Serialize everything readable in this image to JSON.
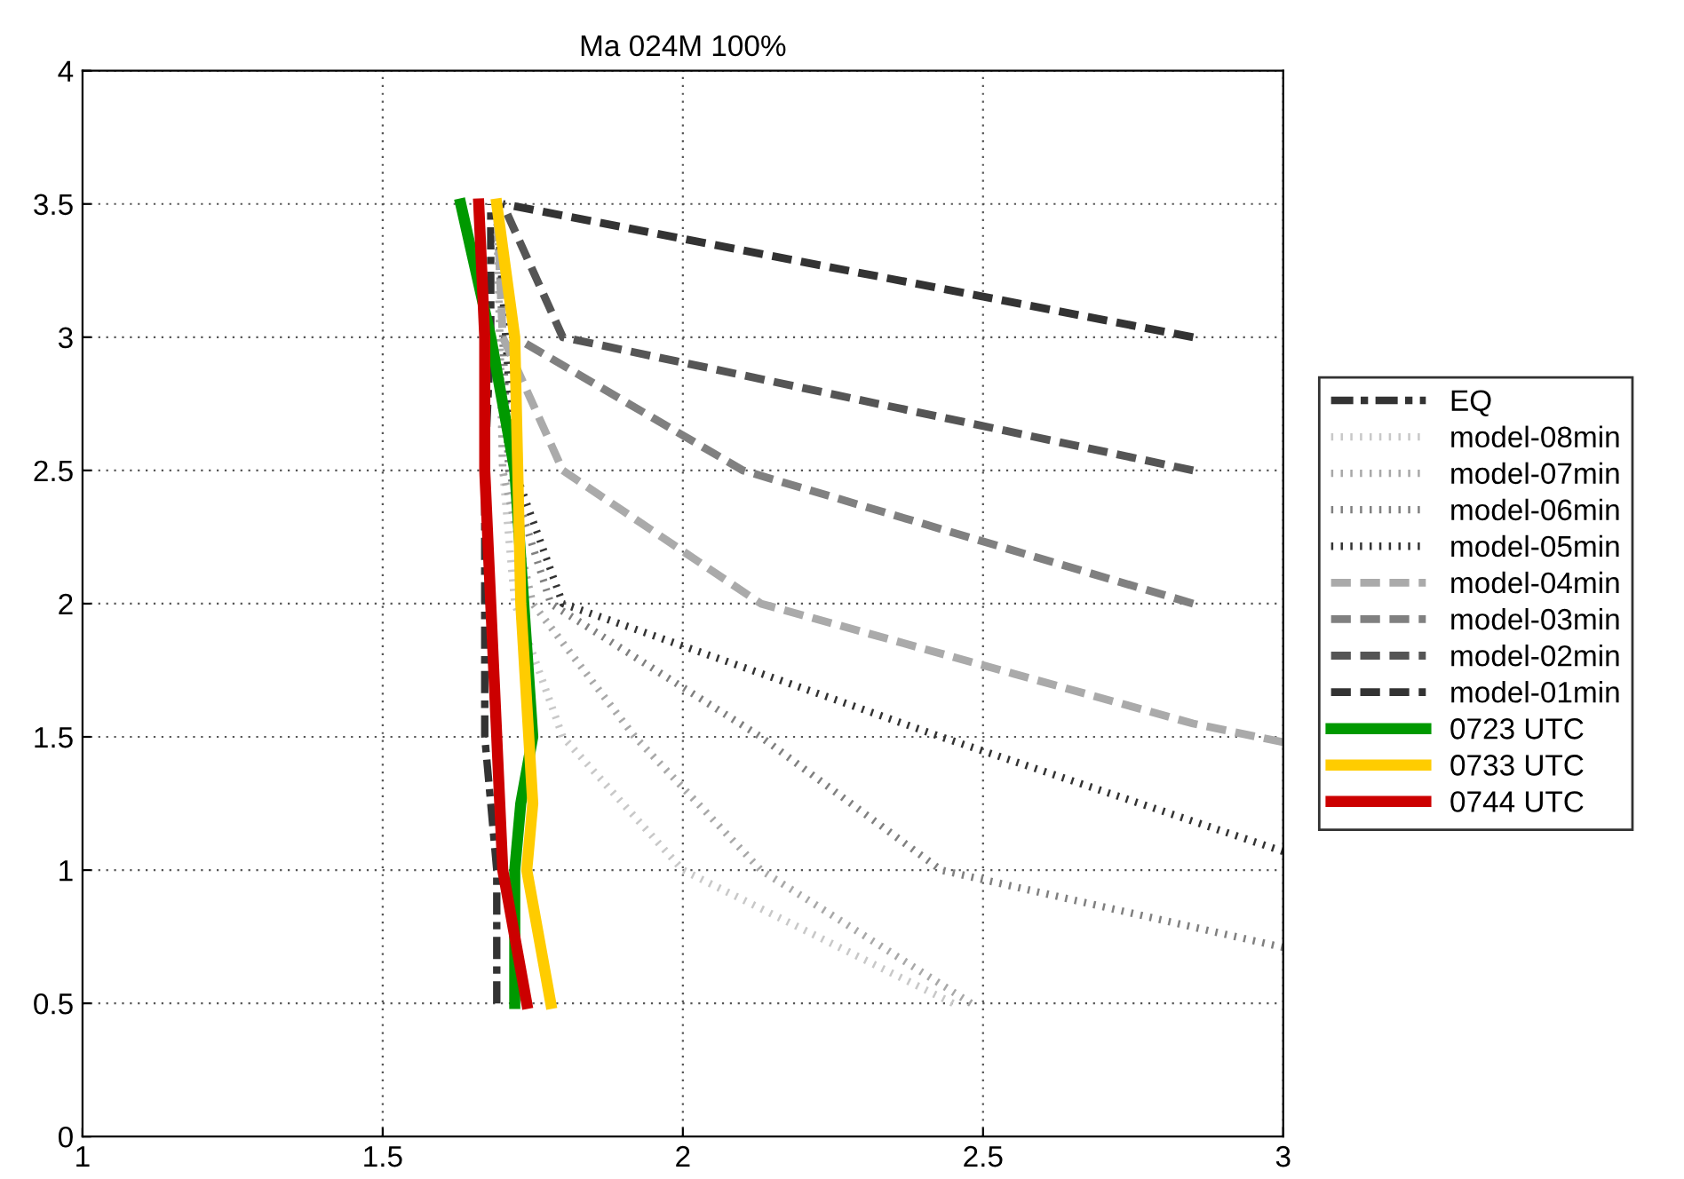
{
  "chart_data": {
    "type": "line",
    "title": "Ma 024M 100%",
    "xlim": [
      1,
      3
    ],
    "ylim": [
      0,
      4
    ],
    "xticks": [
      1,
      1.5,
      2,
      2.5,
      3
    ],
    "yticks": [
      0,
      0.5,
      1,
      1.5,
      2,
      2.5,
      3,
      3.5,
      4
    ],
    "grid": true,
    "legend": "right",
    "marker": "none",
    "series": [
      {
        "name": "EQ",
        "color": "#333333",
        "line_style": "dashdot",
        "x": [
          1.69,
          1.69,
          1.67,
          1.67,
          1.68,
          1.68
        ],
        "values": [
          0.5,
          1.0,
          1.5,
          2.5,
          3.0,
          3.5
        ]
      },
      {
        "name": "model-08min",
        "color": "#c8c8c8",
        "line_style": "dotted",
        "x": [
          2.45,
          2.0,
          1.8,
          1.72,
          1.7,
          1.69
        ],
        "values": [
          0.5,
          1.0,
          1.5,
          2.0,
          2.5,
          3.5
        ]
      },
      {
        "name": "model-07min",
        "color": "#a8a8a8",
        "line_style": "dotted",
        "x": [
          2.48,
          2.13,
          1.92,
          1.75,
          1.7,
          1.69
        ],
        "values": [
          0.5,
          1.0,
          1.5,
          2.0,
          2.5,
          3.5
        ]
      },
      {
        "name": "model-06min",
        "color": "#808080",
        "line_style": "dotted",
        "x": [
          3.0,
          2.43,
          2.13,
          1.78,
          1.71,
          1.69
        ],
        "values": [
          0.71,
          1.0,
          1.5,
          2.0,
          2.5,
          3.5
        ]
      },
      {
        "name": "model-05min",
        "color": "#333333",
        "line_style": "dotted",
        "x": [
          3.0,
          2.43,
          1.8,
          1.72,
          1.69
        ],
        "values": [
          1.07,
          1.5,
          2.0,
          2.5,
          3.5
        ]
      },
      {
        "name": "model-04min",
        "color": "#aaaaaa",
        "line_style": "dashed",
        "x": [
          3.0,
          2.85,
          2.13,
          1.8,
          1.7,
          1.69
        ],
        "values": [
          1.48,
          1.55,
          2.0,
          2.5,
          3.0,
          3.5
        ]
      },
      {
        "name": "model-03min",
        "color": "#808080",
        "line_style": "dashed",
        "x": [
          2.85,
          2.1,
          1.72,
          1.69
        ],
        "values": [
          2.0,
          2.5,
          3.0,
          3.5
        ]
      },
      {
        "name": "model-02min",
        "color": "#555555",
        "line_style": "dashed",
        "x": [
          2.85,
          1.8,
          1.7
        ],
        "values": [
          2.5,
          3.0,
          3.5
        ]
      },
      {
        "name": "model-01min",
        "color": "#333333",
        "line_style": "dashed",
        "x": [
          2.85,
          1.7
        ],
        "values": [
          3.0,
          3.5
        ]
      },
      {
        "name": "0723 UTC",
        "color": "#009900",
        "line_style": "solid",
        "x": [
          1.72,
          1.72,
          1.73,
          1.75,
          1.72,
          1.68,
          1.63
        ],
        "values": [
          0.5,
          1.0,
          1.25,
          1.5,
          2.5,
          3.0,
          3.5
        ]
      },
      {
        "name": "0733 UTC",
        "color": "#ffcc00",
        "line_style": "solid",
        "x": [
          1.78,
          1.74,
          1.75,
          1.73,
          1.72,
          1.69
        ],
        "values": [
          0.5,
          1.0,
          1.25,
          2.0,
          3.0,
          3.5
        ]
      },
      {
        "name": "0744 UTC",
        "color": "#cc0000",
        "line_style": "solid",
        "x": [
          1.74,
          1.7,
          1.69,
          1.67,
          1.67,
          1.66
        ],
        "values": [
          0.5,
          1.0,
          1.5,
          2.5,
          3.0,
          3.5
        ]
      }
    ]
  }
}
